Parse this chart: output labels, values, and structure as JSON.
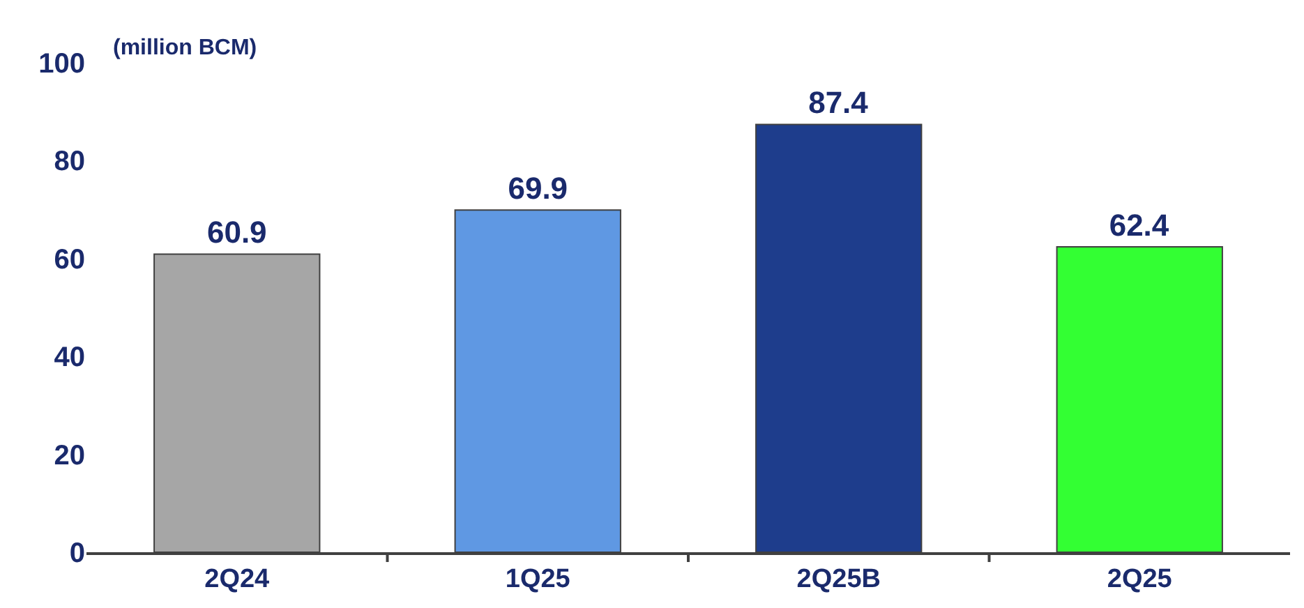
{
  "chart_data": {
    "type": "bar",
    "ylabel": "(million BCM)",
    "categories": [
      "2Q24",
      "1Q25",
      "2Q25B",
      "2Q25"
    ],
    "values": [
      60.9,
      69.9,
      87.4,
      62.4
    ],
    "colors": [
      "#a6a6a6",
      "#5f98e3",
      "#1e3d8c",
      "#33ff33"
    ],
    "ylim": [
      0,
      100
    ],
    "yticks": [
      0,
      20,
      40,
      60,
      80,
      100
    ],
    "data_labels": true
  }
}
